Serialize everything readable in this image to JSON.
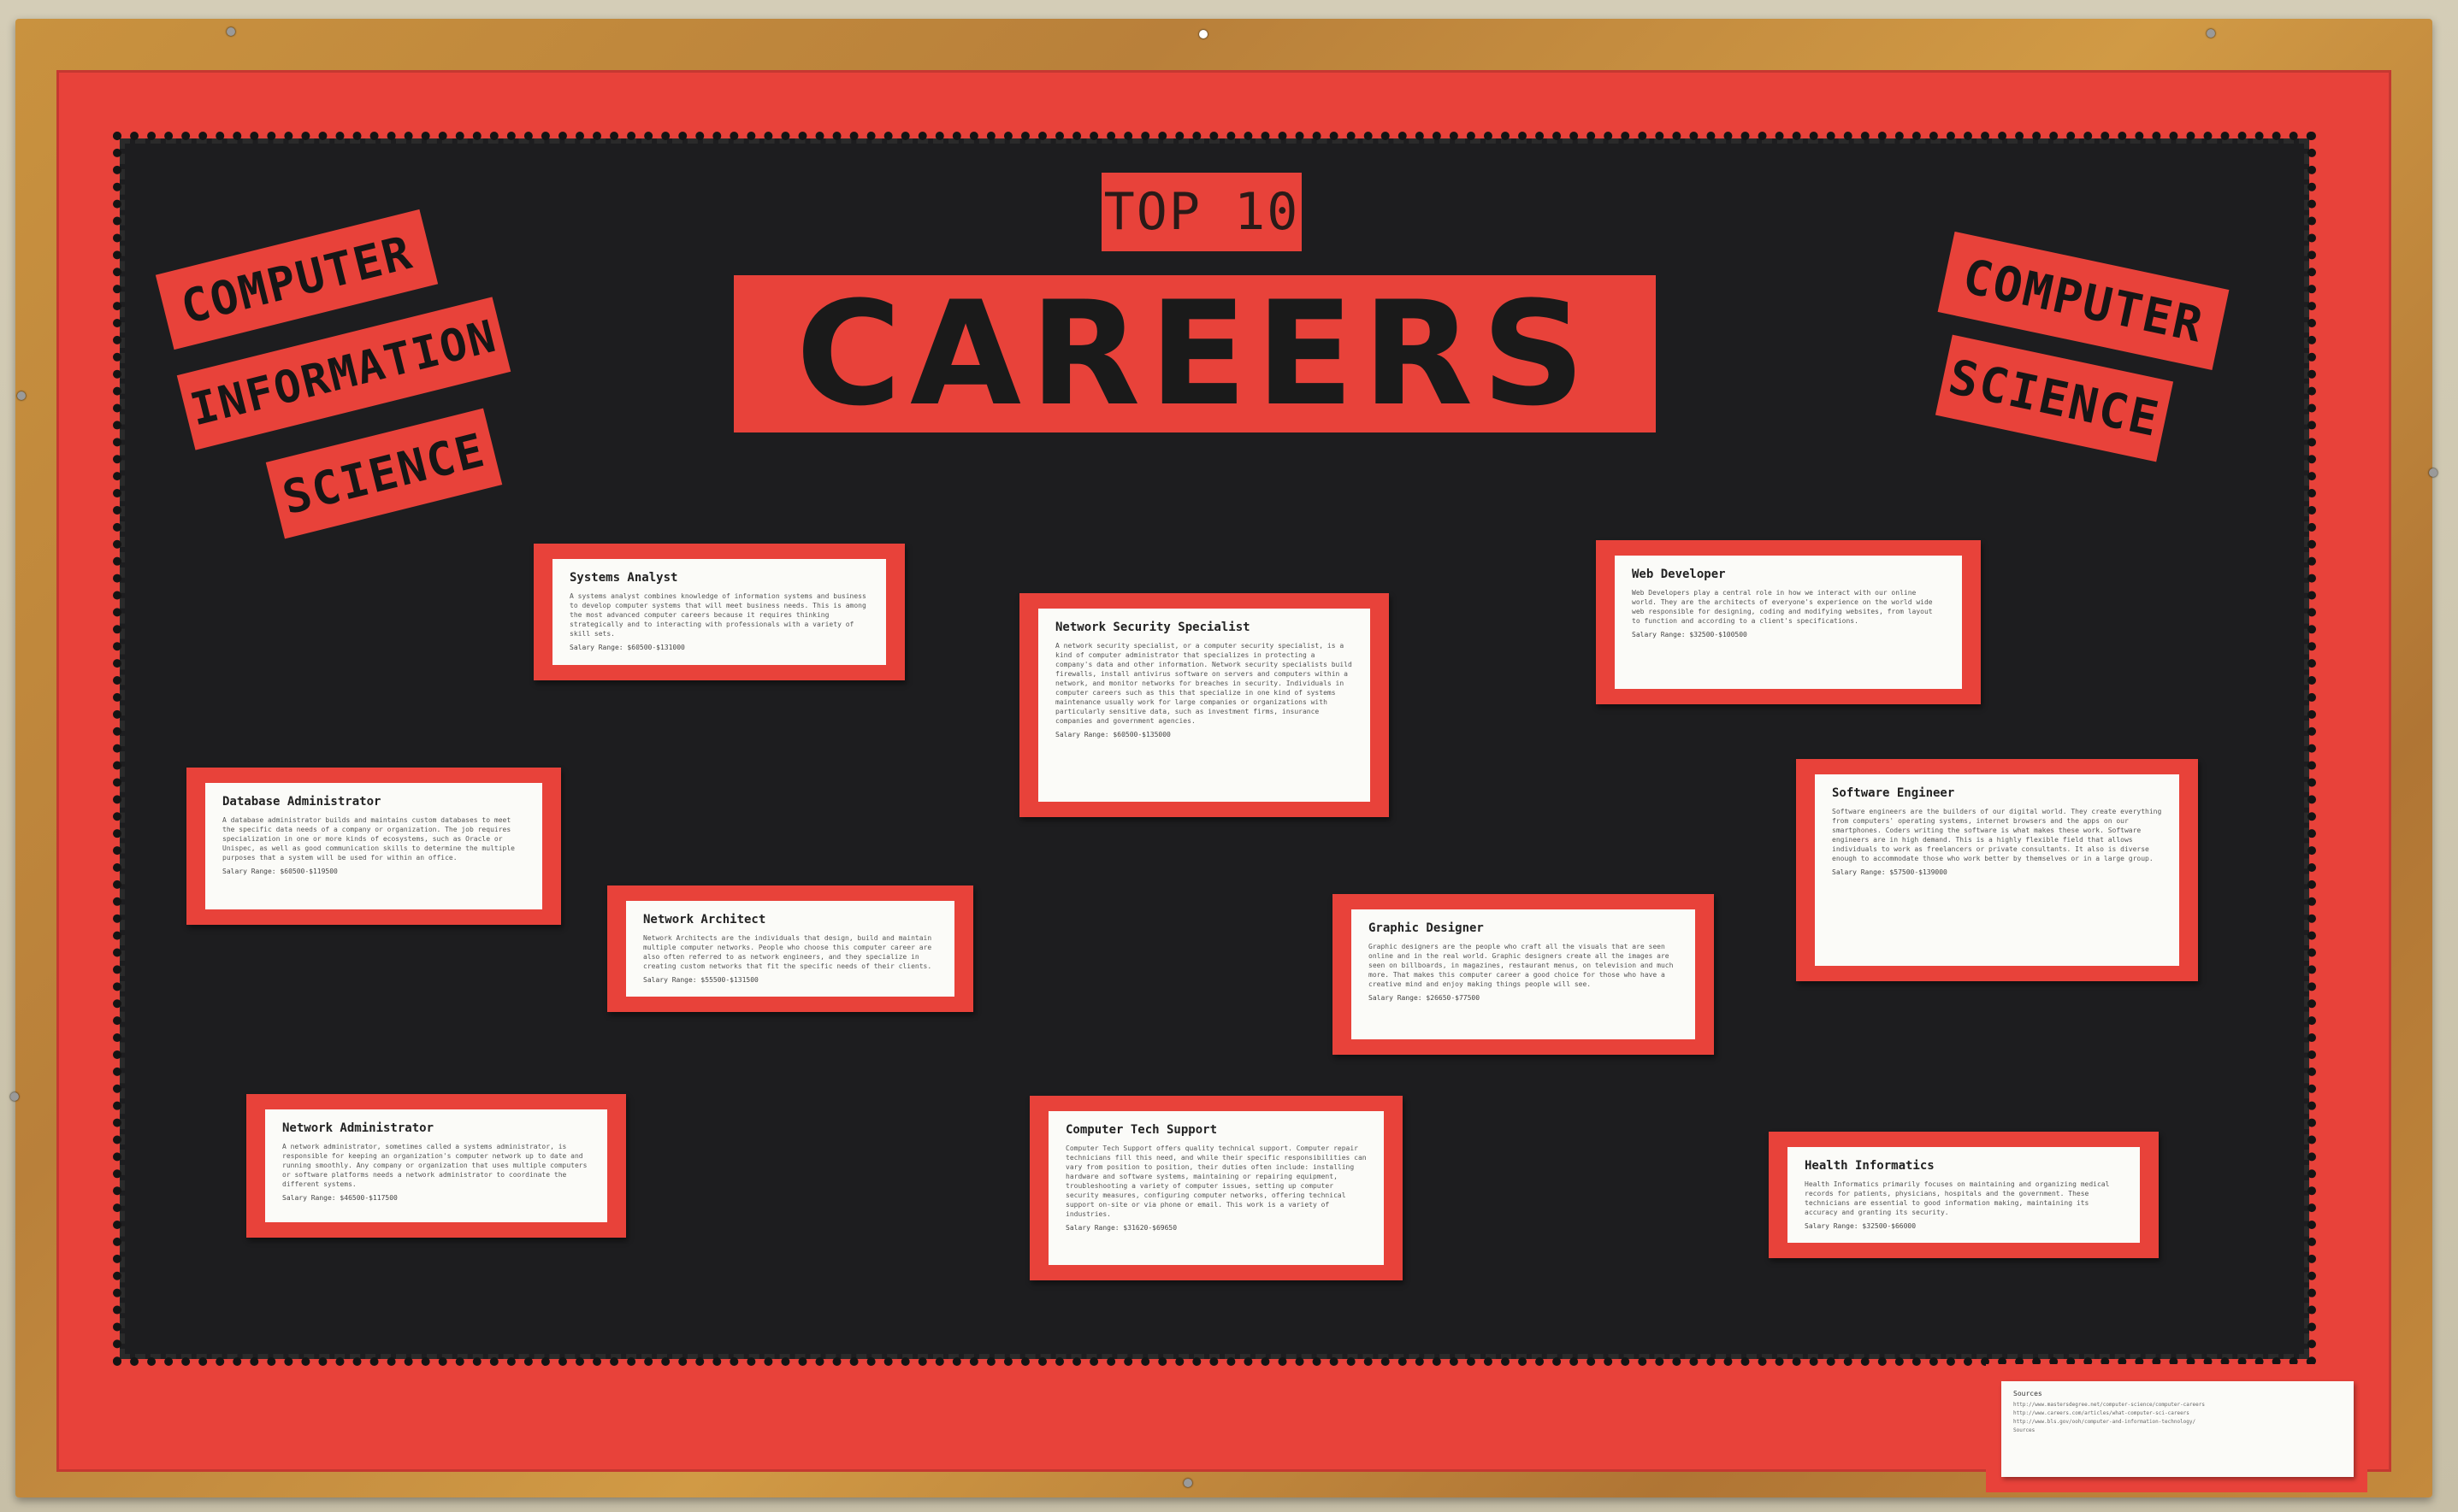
{
  "board": {
    "top_label": "TOP 10",
    "main_title": "CAREERS",
    "left_tags": [
      "COMPUTER",
      "INFORMATION",
      "SCIENCE"
    ],
    "right_tags": [
      "COMPUTER",
      "SCIENCE"
    ]
  },
  "cards": [
    {
      "id": "systems-analyst",
      "title": "Systems Analyst",
      "desc": "A systems analyst combines knowledge of information systems and business to develop computer systems that will meet business needs. This is among the most advanced computer careers because it requires thinking strategically and to interacting with professionals with a variety of skill sets.",
      "salary": "Salary Range: $60500-$131000"
    },
    {
      "id": "network-security-specialist",
      "title": "Network Security Specialist",
      "desc": "A network security specialist, or a computer security specialist, is a kind of computer administrator that specializes in protecting a company's data and other information. Network security specialists build firewalls, install antivirus software on servers and computers within a network, and monitor networks for breaches in security. Individuals in computer careers such as this that specialize in one kind of systems maintenance usually work for large companies or organizations with particularly sensitive data, such as investment firms, insurance companies and government agencies.",
      "salary": "Salary Range: $60500-$135000"
    },
    {
      "id": "web-developer",
      "title": "Web Developer",
      "desc": "Web Developers play a central role in how we interact with our online world. They are the architects of everyone's experience on the world wide web responsible for designing, coding and modifying websites, from layout to function and according to a client's specifications.",
      "salary": "Salary Range: $32500-$100500"
    },
    {
      "id": "database-administrator",
      "title": "Database Administrator",
      "desc": "A database administrator builds and maintains custom databases to meet the specific data needs of a company or organization. The job requires specialization in one or more kinds of ecosystems, such as Oracle or Unispec, as well as good communication skills to determine the multiple purposes that a system will be used for within an office.",
      "salary": "Salary Range: $60500-$119500"
    },
    {
      "id": "software-engineer",
      "title": "Software Engineer",
      "desc": "Software engineers are the builders of our digital world. They create everything from computers' operating systems, internet browsers and the apps on our smartphones. Coders writing the software is what makes these work. Software engineers are in high demand. This is a highly flexible field that allows individuals to work as freelancers or private consultants. It also is diverse enough to accommodate those who work better by themselves or in a large group.",
      "salary": "Salary Range: $57500-$139000"
    },
    {
      "id": "network-architect",
      "title": "Network Architect",
      "desc": "Network Architects are the individuals that design, build and maintain multiple computer networks. People who choose this computer career are also often referred to as network engineers, and they specialize in creating custom networks that fit the specific needs of their clients.",
      "salary": "Salary Range: $55500-$131500"
    },
    {
      "id": "graphic-designer",
      "title": "Graphic Designer",
      "desc": "Graphic designers are the people who craft all the visuals that are seen online and in the real world. Graphic designers create all the images are seen on billboards, in magazines, restaurant menus, on television and much more. That makes this computer career a good choice for those who have a creative mind and enjoy making things people will see.",
      "salary": "Salary Range: $26650-$77500"
    },
    {
      "id": "network-administrator",
      "title": "Network Administrator",
      "desc": "A network administrator, sometimes called a systems administrator, is responsible for keeping an organization's computer network up to date and running smoothly. Any company or organization that uses multiple computers or software platforms needs a network administrator to coordinate the different systems.",
      "salary": "Salary Range: $46500-$117500"
    },
    {
      "id": "computer-tech-support",
      "title": "Computer Tech Support",
      "desc": "Computer Tech Support offers quality technical support. Computer repair technicians fill this need, and while their specific responsibilities can vary from position to position, their duties often include: installing hardware and software systems, maintaining or repairing equipment, troubleshooting a variety of computer issues, setting up computer security measures, configuring computer networks, offering technical support on-site or via phone or email. This work is a variety of industries.",
      "salary": "Salary Range: $31620-$69650"
    },
    {
      "id": "health-informatics",
      "title": "Health Informatics",
      "desc": "Health Informatics primarily focuses on maintaining and organizing medical records for patients, physicians, hospitals and the government. These technicians are essential to good information making, maintaining its accuracy and granting its security.",
      "salary": "Salary Range: $32500-$66000"
    }
  ],
  "sources": {
    "heading": "Sources",
    "links": [
      "http://www.mastersdegree.net/computer-science/computer-careers",
      "http://www.careers.com/articles/what-computer-sci-careers",
      "http://www.bls.gov/ooh/computer-and-information-technology/",
      "Sources"
    ]
  }
}
